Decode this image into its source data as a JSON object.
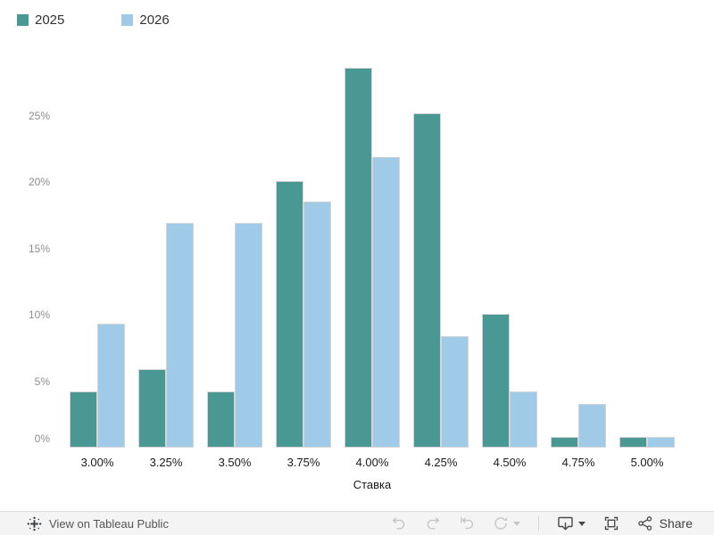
{
  "chart_data": {
    "type": "bar",
    "categories": [
      "3.00%",
      "3.25%",
      "3.50%",
      "3.75%",
      "4.00%",
      "4.25%",
      "4.50%",
      "4.75%",
      "5.00%"
    ],
    "series": [
      {
        "name": "2025",
        "color": "#499894",
        "values": [
          4.2,
          5.9,
          4.2,
          20.1,
          28.6,
          25.2,
          10.1,
          0.8,
          0.8
        ]
      },
      {
        "name": "2026",
        "color": "#A0CBE8",
        "values": [
          9.3,
          16.9,
          16.9,
          18.5,
          21.9,
          8.4,
          4.2,
          3.3,
          0.8
        ]
      }
    ],
    "xlabel": "Ставка",
    "y_ticks": [
      "0%",
      "5%",
      "10%",
      "15%",
      "20%",
      "25%"
    ],
    "ylim": [
      0,
      29.7
    ],
    "grid": false,
    "legend_position": "top-left",
    "bar_border_color": "#d4d4d4"
  },
  "legend": {
    "items": [
      {
        "label": "2025",
        "color": "#499894"
      },
      {
        "label": "2026",
        "color": "#A0CBE8"
      }
    ]
  },
  "toolbar": {
    "view_on_label": "View on Tableau Public",
    "share_label": "Share",
    "left_icons": [
      "tableau-logo-icon"
    ],
    "right_icons": [
      "undo-icon",
      "redo-icon",
      "reset-icon",
      "refresh-icon",
      "caret-down-icon",
      "download-icon",
      "caret-down-icon",
      "fullscreen-icon",
      "share-icon"
    ],
    "disabled_icon_color": "#c6c6c6",
    "active_icon_color": "#4a4a4a",
    "background": "#f4f4f4"
  }
}
